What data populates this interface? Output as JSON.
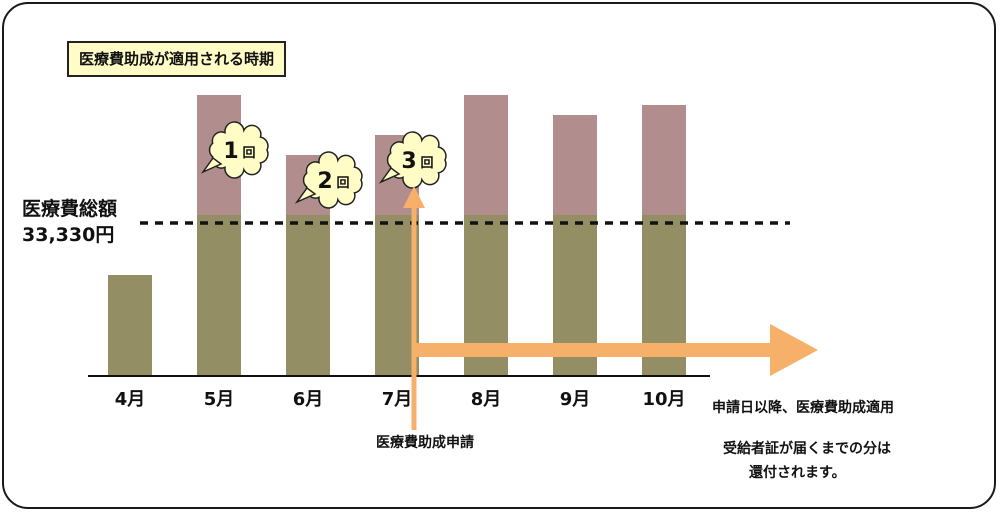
{
  "title": "医療費助成が適用される時期",
  "total": {
    "label": "医療費総額",
    "amount": "33,330円"
  },
  "colors": {
    "base": "#948e65",
    "excess": "#b28d8e",
    "arrow": "#f6b06a",
    "title_bg": "#fffcc5"
  },
  "chart_data": {
    "type": "bar",
    "categories": [
      "4月",
      "5月",
      "6月",
      "7月",
      "8月",
      "9月",
      "10月"
    ],
    "series": [
      {
        "values": [
          1.0,
          1.6,
          1.6,
          1.6,
          1.6,
          1.6,
          1.6
        ]
      },
      {
        "values": [
          0,
          1.2,
          0.6,
          0.8,
          1.2,
          1.0,
          1.1
        ]
      }
    ],
    "threshold": 33330,
    "bubbles": [
      {
        "month": "5月",
        "num": "1",
        "suffix": "回"
      },
      {
        "month": "6月",
        "num": "2",
        "suffix": "回"
      },
      {
        "month": "7月",
        "num": "3",
        "suffix": "回"
      }
    ]
  },
  "application_label": "医療費助成申請",
  "notes": {
    "line1": "申請日以降、医療費助成適用",
    "line2": "受給者証が届くまでの分は",
    "line3": "還付されます。"
  }
}
